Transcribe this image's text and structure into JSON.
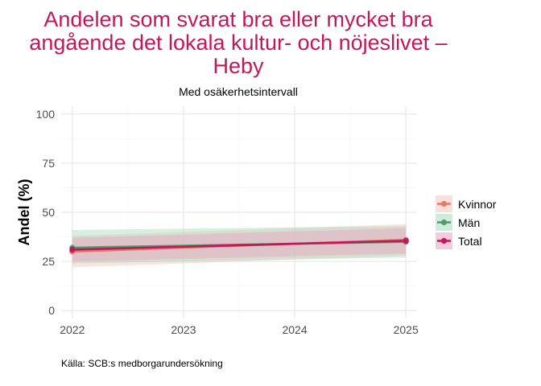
{
  "chart_data": {
    "type": "line",
    "title": "Andelen som svarat bra eller mycket bra angående det lokala kultur- och nöjeslivet – Heby",
    "title_lines": [
      "Andelen som svarat bra eller mycket bra",
      "angående det lokala kultur- och nöjeslivet –",
      "Heby"
    ],
    "subtitle": "Med osäkerhetsintervall",
    "xlabel": "",
    "ylabel": "Andel (%)",
    "caption": "Källa: SCB:s medborgarundersökning",
    "x": [
      2022,
      2025
    ],
    "x_ticks": [
      2022,
      2023,
      2024,
      2025
    ],
    "y_ticks": [
      0,
      25,
      50,
      75,
      100
    ],
    "xlim": [
      2021.9,
      2025.1
    ],
    "ylim": [
      -4,
      104
    ],
    "grid": true,
    "legend_position": "right",
    "series": [
      {
        "name": "Kvinnor",
        "color": "#e07b6a",
        "band_color": "#f4c3bb",
        "values": [
          30,
          36
        ],
        "lower": [
          22,
          28
        ],
        "upper": [
          38,
          44
        ]
      },
      {
        "name": "Män",
        "color": "#4a9e6b",
        "band_color": "#a9d9bd",
        "values": [
          32,
          35
        ],
        "lower": [
          24,
          27
        ],
        "upper": [
          41,
          43
        ]
      },
      {
        "name": "Total",
        "color": "#c2185b",
        "band_color": "#e8a3c1",
        "values": [
          31,
          35.5
        ],
        "lower": [
          25,
          29
        ],
        "upper": [
          37,
          42
        ]
      }
    ]
  }
}
